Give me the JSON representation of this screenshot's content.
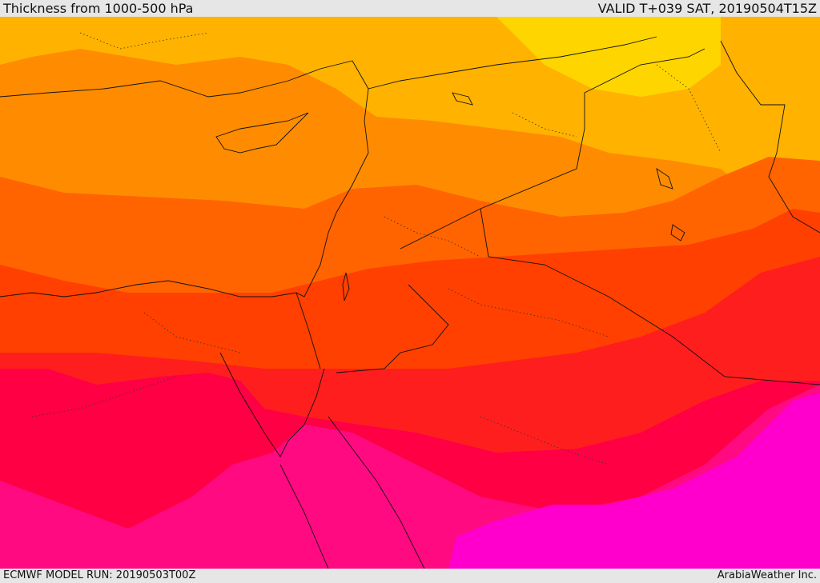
{
  "header": {
    "title": "Thickness from 1000-500 hPa",
    "valid": "VALID T+039 SAT, 20190504T15Z"
  },
  "footer": {
    "model_run": "ECMWF MODEL RUN: 20190503T00Z",
    "credit": "ArabiaWeather Inc."
  },
  "palette": {
    "band_1": "#ffd500",
    "band_2": "#ffb300",
    "band_3": "#ff8c00",
    "band_4": "#ff6400",
    "band_5": "#ff4000",
    "band_6": "#ff1e1e",
    "band_7": "#ff0044",
    "band_8": "#ff0a80",
    "band_9": "#ff00cc",
    "coastline": "#111111"
  }
}
